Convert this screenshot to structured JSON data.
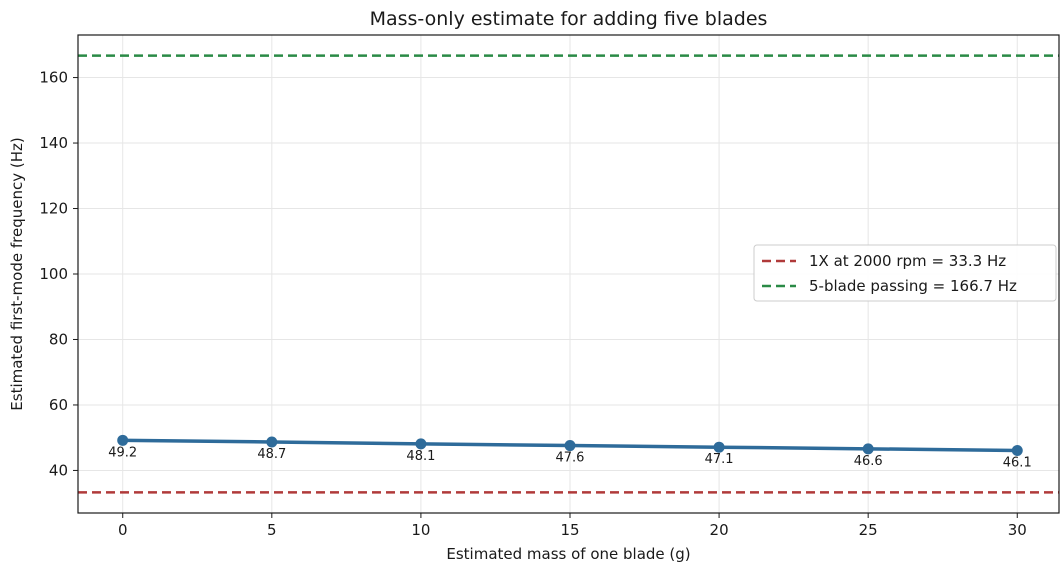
{
  "chart_data": {
    "type": "line",
    "title": "Mass-only estimate for adding five blades",
    "xlabel": "Estimated mass of one blade (g)",
    "ylabel": "Estimated first-mode frequency (Hz)",
    "xlim": [
      -1.5,
      31.4
    ],
    "ylim": [
      27,
      173
    ],
    "xticks": [
      0,
      5,
      10,
      15,
      20,
      25,
      30
    ],
    "yticks": [
      40,
      60,
      80,
      100,
      120,
      140,
      160
    ],
    "grid": true,
    "legend_position": "center-right",
    "series": [
      {
        "x": [
          0,
          5,
          10,
          15,
          20,
          25,
          30
        ],
        "y": [
          49.2,
          48.7,
          48.1,
          47.6,
          47.1,
          46.6,
          46.1
        ],
        "labels": [
          "49.2",
          "48.7",
          "48.1",
          "47.6",
          "47.1",
          "46.6",
          "46.1"
        ],
        "color": "#2e6b9a",
        "marker": "circle"
      }
    ],
    "reference_lines": [
      {
        "y": 33.3,
        "label": "1X at 2000 rpm = 33.3 Hz",
        "color": "#b03a3a",
        "style": "dashed"
      },
      {
        "y": 166.7,
        "label": "5-blade passing = 166.7 Hz",
        "color": "#2a8a46",
        "style": "dashed"
      }
    ]
  }
}
